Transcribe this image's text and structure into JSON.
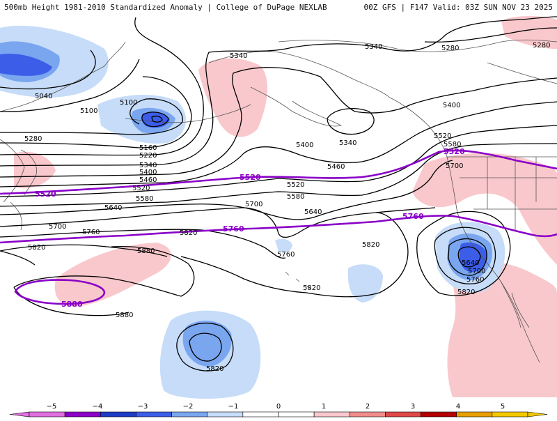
{
  "header": {
    "title": "500mb Height 1981-2010 Standardized Anomaly | College of DuPage NEXLAB",
    "run_info": "00Z GFS | F147 Valid: 03Z SUN NOV 23 2025"
  },
  "colors": {
    "pos1": "#f9c8cc",
    "neg1": "#c6dcf8",
    "neg2": "#7aa6f0",
    "neg3": "#3c5de8",
    "contour": "#000000",
    "highlight": "#8a00c8",
    "coast": "#555555"
  },
  "contour_labels": {
    "c5040": "5040",
    "c5100a": "5100",
    "c5100b": "5100",
    "c5160": "5160",
    "c5220": "5220",
    "c5280a": "5280",
    "c5280b": "5280",
    "c5280c": "5280",
    "c5340a": "5340",
    "c5340b": "5340",
    "c5340c": "5340",
    "c5340d": "5340",
    "c5400a": "5400",
    "c5400b": "5400",
    "c5400c": "5400",
    "c5460a": "5460",
    "c5460b": "5460",
    "c5520a": "5520",
    "c5520b": "5520",
    "c5520c": "5520",
    "c5580a": "5580",
    "c5580b": "5580",
    "c5580c": "5580",
    "c5640a": "5640",
    "c5640b": "5640",
    "c5640c": "5640",
    "c5700a": "5700",
    "c5700b": "5700",
    "c5700c": "5700",
    "c5700d": "5700",
    "c5760a": "5760",
    "c5760b": "5760",
    "c5820a": "5820",
    "c5820b": "5820",
    "c5820c": "5820",
    "c5820d": "5820",
    "c5820e": "5820",
    "c5820f": "5820",
    "c5880a": "5880"
  },
  "highlight_labels": {
    "h5520a": "5520",
    "h5520b": "5520",
    "h5520c": "5520",
    "h5760a": "5760",
    "h5760b": "5760",
    "h5880": "5880"
  },
  "colorbar": {
    "ticks": [
      "−5",
      "−4",
      "−3",
      "−2",
      "−1",
      "0",
      "1",
      "2",
      "3",
      "4",
      "5"
    ],
    "colors": [
      "#e070e0",
      "#8a00c8",
      "#1e3cc8",
      "#3c5de8",
      "#7aa6f0",
      "#c6dcf8",
      "#ffffff",
      "#ffffff",
      "#f9c8cc",
      "#f08c8c",
      "#e04848",
      "#b40000",
      "#e8a000",
      "#f4c800"
    ]
  }
}
